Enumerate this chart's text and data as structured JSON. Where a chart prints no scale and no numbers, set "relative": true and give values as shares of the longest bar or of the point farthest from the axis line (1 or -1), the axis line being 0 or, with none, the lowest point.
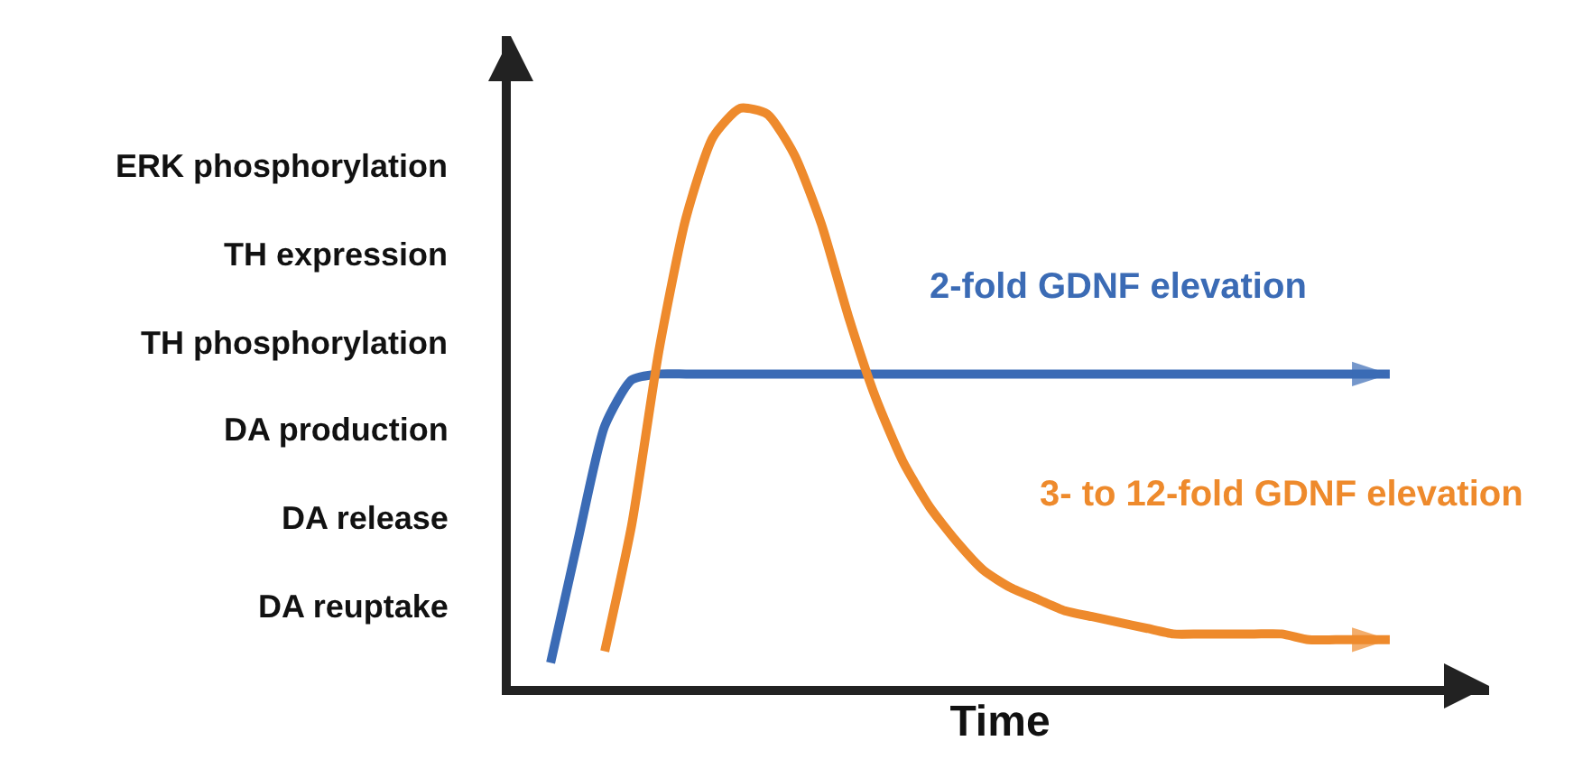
{
  "chart_data": {
    "type": "line",
    "relative": true,
    "xlabel": "Time",
    "categories": [
      null,
      null,
      null,
      null,
      null,
      null,
      null,
      null,
      null,
      null,
      null,
      null,
      null,
      null,
      null,
      null,
      null,
      null,
      null,
      null,
      null,
      null,
      null,
      null,
      null,
      null,
      null,
      null,
      null,
      null,
      null,
      null
    ],
    "series": [
      {
        "name": "2-fold GDNF elevation",
        "color": "#3b6bb5",
        "values": [
          0.04,
          0.25,
          0.45,
          0.53,
          0.54,
          0.54,
          0.54,
          0.54,
          0.54,
          0.54,
          0.54,
          0.54,
          0.54,
          0.54,
          0.54,
          0.54,
          0.54,
          0.54,
          0.54,
          0.54,
          0.54,
          0.54,
          0.54,
          0.54,
          0.54,
          0.54,
          0.54,
          0.54,
          0.54,
          0.54,
          0.54,
          0.54
        ]
      },
      {
        "name": "3- to 12-fold GDNF elevation",
        "color": "#ee8a2c",
        "values": [
          null,
          null,
          0.06,
          0.28,
          0.58,
          0.81,
          0.95,
          1.0,
          0.99,
          0.92,
          0.8,
          0.64,
          0.5,
          0.39,
          0.31,
          0.25,
          0.2,
          0.17,
          0.15,
          0.13,
          0.12,
          0.11,
          0.1,
          0.09,
          0.09,
          0.09,
          0.09,
          0.09,
          0.08,
          0.08,
          0.08,
          0.08
        ]
      }
    ],
    "annotations": [
      "ERK phosphorylation",
      "TH expression",
      "TH phosphorylation",
      "DA production",
      "DA release",
      "DA reuptake"
    ],
    "legend": false,
    "marker": "none",
    "line_style": "solid"
  }
}
